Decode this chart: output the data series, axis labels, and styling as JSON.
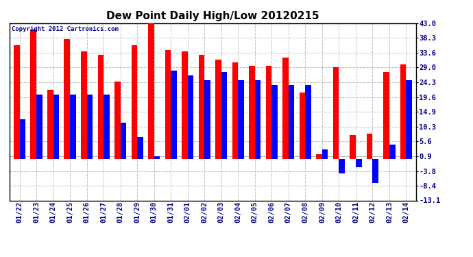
{
  "title": "Dew Point Daily High/Low 20120215",
  "copyright": "Copyright 2012 Cartronics.com",
  "categories": [
    "01/22",
    "01/23",
    "01/24",
    "01/25",
    "01/26",
    "01/27",
    "01/28",
    "01/29",
    "01/30",
    "01/31",
    "02/01",
    "02/02",
    "02/03",
    "02/04",
    "02/05",
    "02/06",
    "02/07",
    "02/08",
    "02/09",
    "02/10",
    "02/11",
    "02/12",
    "02/13",
    "02/14"
  ],
  "high_values": [
    36.0,
    41.0,
    22.0,
    38.0,
    34.0,
    33.0,
    24.5,
    36.0,
    43.0,
    34.5,
    34.0,
    33.0,
    31.5,
    30.5,
    29.5,
    29.5,
    32.0,
    21.0,
    1.5,
    29.0,
    7.5,
    8.0,
    27.5,
    30.0
  ],
  "low_values": [
    12.5,
    20.5,
    20.5,
    20.5,
    20.5,
    20.5,
    11.5,
    7.0,
    0.9,
    28.0,
    26.5,
    25.0,
    27.5,
    25.0,
    25.0,
    23.5,
    23.5,
    23.5,
    3.0,
    -4.5,
    -2.5,
    -7.5,
    4.5,
    25.0
  ],
  "high_color": "#ff0000",
  "low_color": "#0000ff",
  "bg_color": "#ffffff",
  "yticks": [
    43.0,
    38.3,
    33.6,
    29.0,
    24.3,
    19.6,
    14.9,
    10.3,
    5.6,
    0.9,
    -3.8,
    -8.4,
    -13.1
  ],
  "ymin": -13.1,
  "ymax": 43.0,
  "grid_color": "#c0c0c0",
  "title_fontsize": 11,
  "tick_fontsize": 7.5,
  "bar_width": 0.35
}
